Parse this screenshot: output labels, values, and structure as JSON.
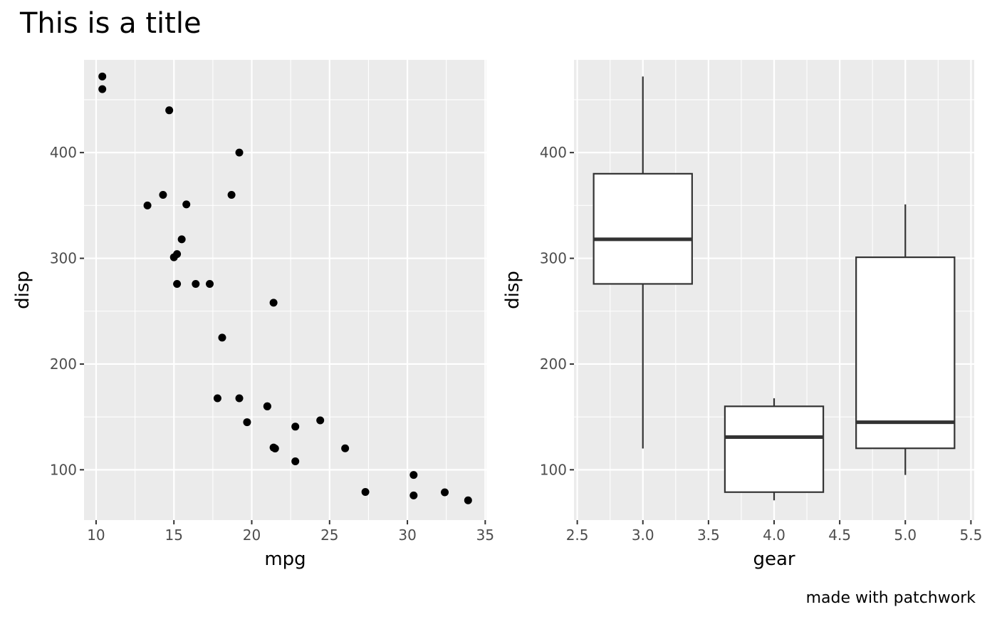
{
  "title": "This is a title",
  "caption": "made with patchwork",
  "chart_data": [
    {
      "type": "scatter",
      "xlabel": "mpg",
      "ylabel": "disp",
      "xlim": [
        9.225,
        35.075
      ],
      "ylim": [
        52.39,
        487.71
      ],
      "xticks": [
        10,
        15,
        20,
        25,
        30,
        35
      ],
      "xtick_labels": [
        "10",
        "15",
        "20",
        "25",
        "30",
        "35"
      ],
      "yticks": [
        100,
        200,
        300,
        400
      ],
      "ytick_labels": [
        "100",
        "200",
        "300",
        "400"
      ],
      "grid": true,
      "points": [
        [
          21.0,
          160
        ],
        [
          21.0,
          160
        ],
        [
          22.8,
          108
        ],
        [
          21.4,
          258
        ],
        [
          18.7,
          360
        ],
        [
          18.1,
          225
        ],
        [
          14.3,
          360
        ],
        [
          24.4,
          146.7
        ],
        [
          22.8,
          140.8
        ],
        [
          19.2,
          167.6
        ],
        [
          17.8,
          167.6
        ],
        [
          16.4,
          275.8
        ],
        [
          17.3,
          275.8
        ],
        [
          15.2,
          275.8
        ],
        [
          10.4,
          472
        ],
        [
          10.4,
          460
        ],
        [
          14.7,
          440
        ],
        [
          32.4,
          78.7
        ],
        [
          30.4,
          75.7
        ],
        [
          33.9,
          71.1
        ],
        [
          21.5,
          120.1
        ],
        [
          15.5,
          318
        ],
        [
          15.2,
          304
        ],
        [
          13.3,
          350
        ],
        [
          19.2,
          400
        ],
        [
          27.3,
          79
        ],
        [
          26.0,
          120.3
        ],
        [
          30.4,
          95.1
        ],
        [
          15.8,
          351
        ],
        [
          19.7,
          145
        ],
        [
          15.0,
          301
        ],
        [
          21.4,
          121
        ]
      ]
    },
    {
      "type": "box",
      "xlabel": "gear",
      "ylabel": "disp",
      "xlim": [
        2.475,
        5.525
      ],
      "ylim": [
        52.39,
        487.71
      ],
      "xticks": [
        2.5,
        3.0,
        3.5,
        4.0,
        4.5,
        5.0,
        5.5
      ],
      "xtick_labels": [
        "2.5",
        "3.0",
        "3.5",
        "4.0",
        "4.5",
        "5.0",
        "5.5"
      ],
      "yticks": [
        100,
        200,
        300,
        400
      ],
      "ytick_labels": [
        "100",
        "200",
        "300",
        "400"
      ],
      "grid": true,
      "boxes": [
        {
          "x": 3.0,
          "min": 120.1,
          "q1": 275.8,
          "median": 318,
          "q3": 380,
          "max": 472
        },
        {
          "x": 4.0,
          "min": 71.1,
          "q1": 78.85,
          "median": 130.9,
          "q3": 160,
          "max": 167.6
        },
        {
          "x": 5.0,
          "min": 95.1,
          "q1": 120.3,
          "median": 145,
          "q3": 301,
          "max": 351
        }
      ]
    }
  ]
}
